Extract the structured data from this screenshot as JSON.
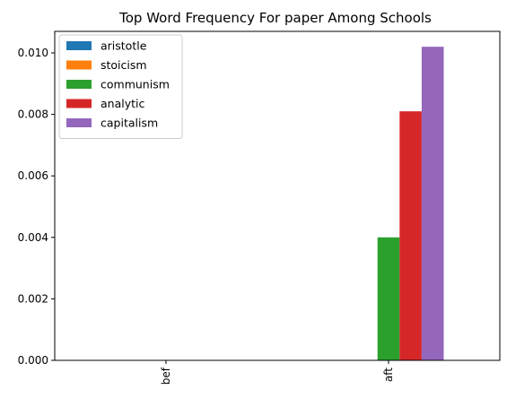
{
  "chart_data": {
    "type": "bar",
    "title": "Top Word Frequency For paper Among Schools",
    "xlabel": "",
    "ylabel": "",
    "categories": [
      "bef",
      "aft"
    ],
    "series": [
      {
        "name": "aristotle",
        "color": "#1f77b4",
        "values": [
          0,
          0
        ]
      },
      {
        "name": "stoicism",
        "color": "#ff7f0e",
        "values": [
          0,
          0
        ]
      },
      {
        "name": "communism",
        "color": "#2ca02c",
        "values": [
          0,
          0.004
        ]
      },
      {
        "name": "analytic",
        "color": "#d62728",
        "values": [
          0,
          0.0081
        ]
      },
      {
        "name": "capitalism",
        "color": "#9467bd",
        "values": [
          0,
          0.0102
        ]
      }
    ],
    "ylim": [
      0,
      0.0107
    ],
    "yticks": [
      0.0,
      0.002,
      0.004,
      0.006,
      0.008,
      0.01
    ],
    "ytick_labels": [
      "0.000",
      "0.002",
      "0.004",
      "0.006",
      "0.008",
      "0.010"
    ],
    "legend_position": "top-left",
    "grid": false
  }
}
